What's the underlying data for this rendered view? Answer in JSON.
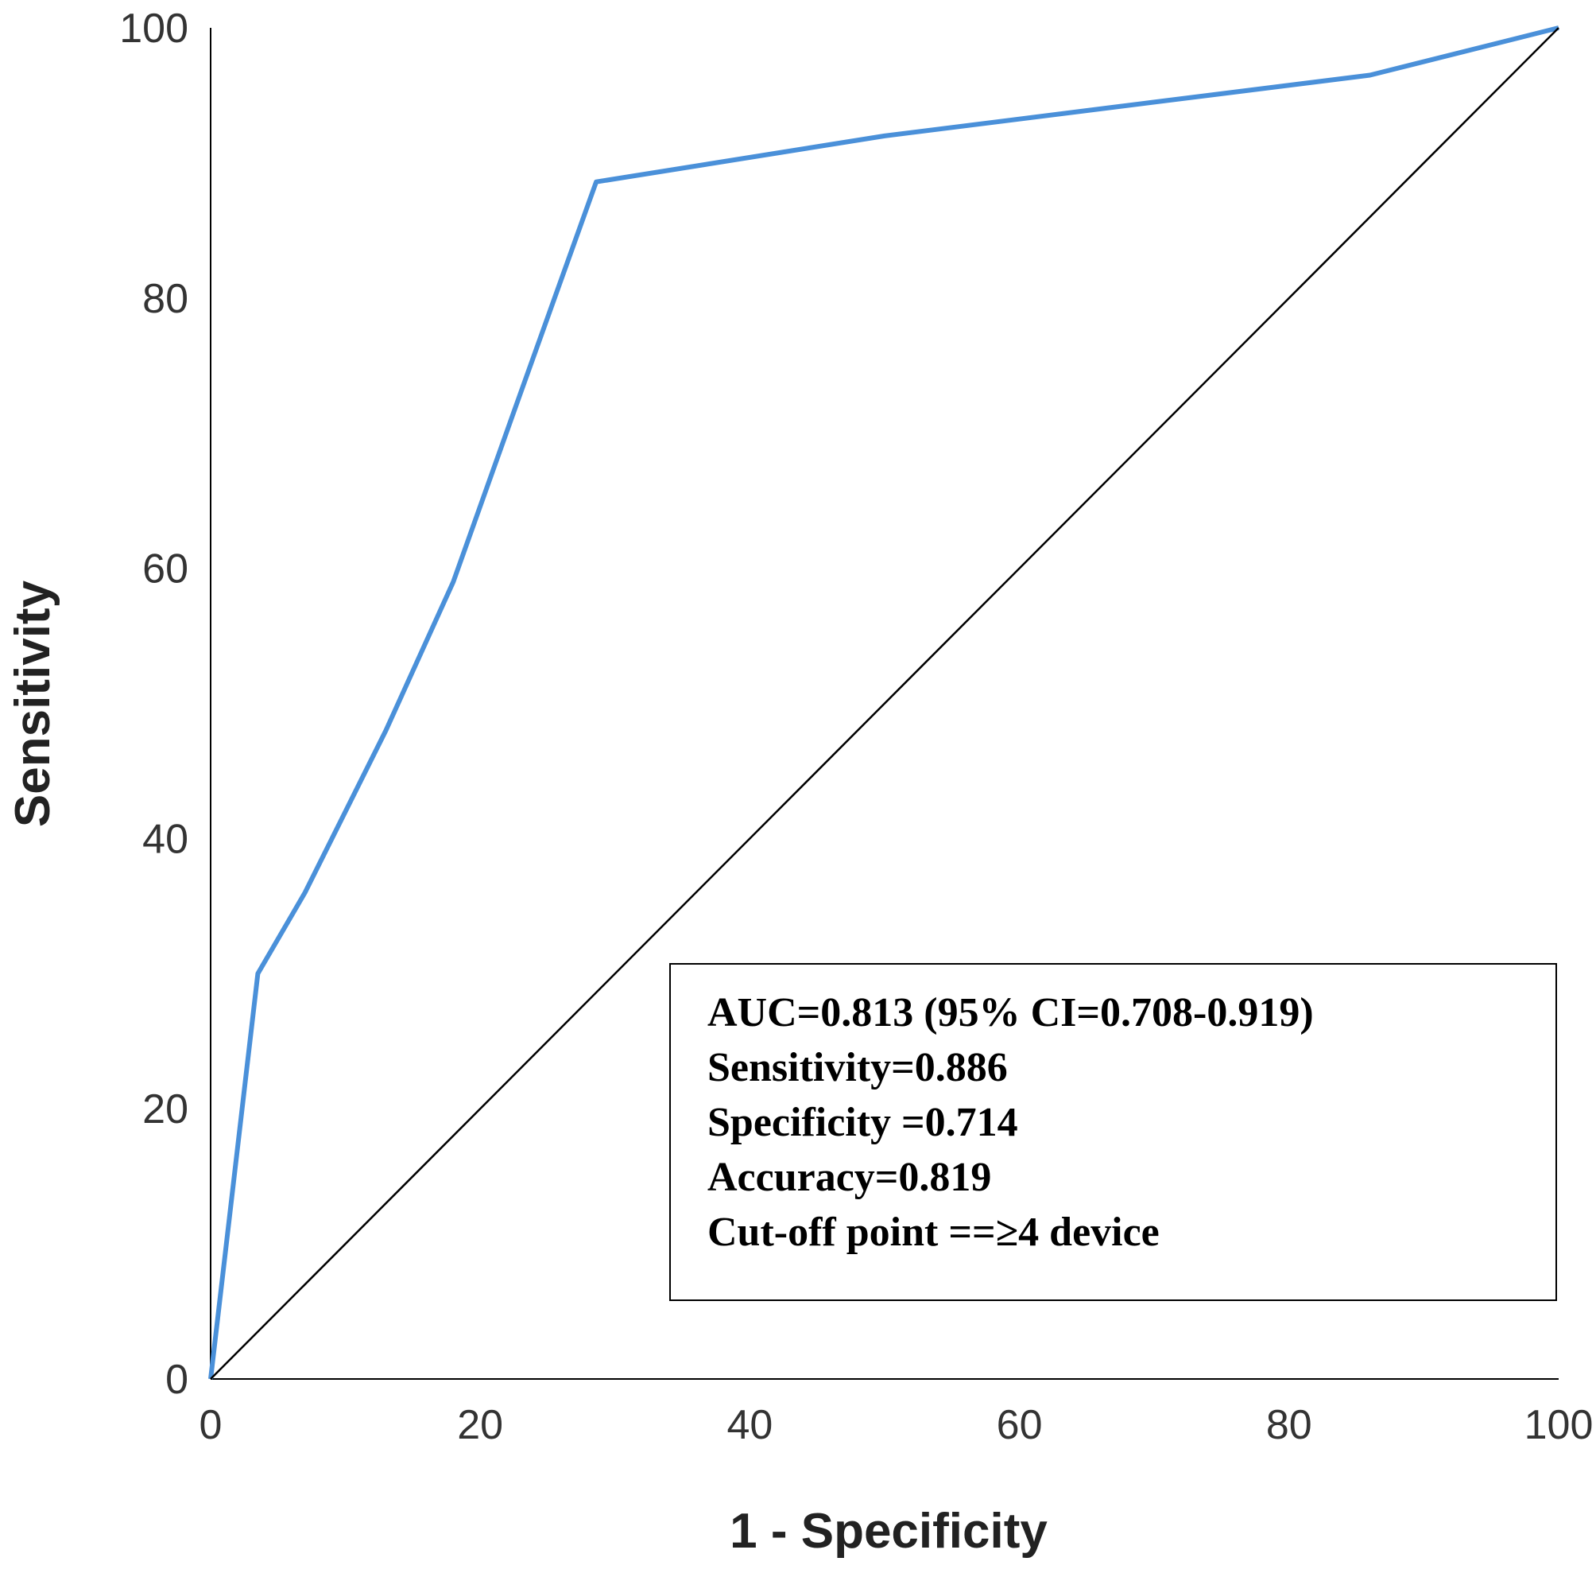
{
  "chart_data": {
    "type": "line",
    "title": "",
    "xlabel": "1 - Specificity",
    "ylabel": "Sensitivity",
    "xlim": [
      0,
      100
    ],
    "ylim": [
      0,
      100
    ],
    "x_ticks": [
      "0",
      "20",
      "40",
      "60",
      "80",
      "100"
    ],
    "y_ticks": [
      "0",
      "20",
      "40",
      "60",
      "80",
      "100"
    ],
    "grid": false,
    "series": [
      {
        "color": "#4A90D9",
        "x": [
          0,
          3.5,
          7,
          13,
          18,
          23,
          28.6,
          50,
          70,
          86,
          100
        ],
        "y": [
          0,
          30,
          36,
          48,
          59,
          73,
          88.6,
          92,
          94.5,
          96.5,
          100
        ]
      },
      {
        "color": "#000000",
        "x": [
          0,
          100
        ],
        "y": [
          0,
          100
        ]
      }
    ],
    "annotation_lines": [
      "AUC=0.813 (95% CI=0.708-0.919)",
      "Sensitivity=0.886",
      "Specificity =0.714",
      "Accuracy=0.819",
      "Cut-off point ==≥4 device"
    ]
  }
}
